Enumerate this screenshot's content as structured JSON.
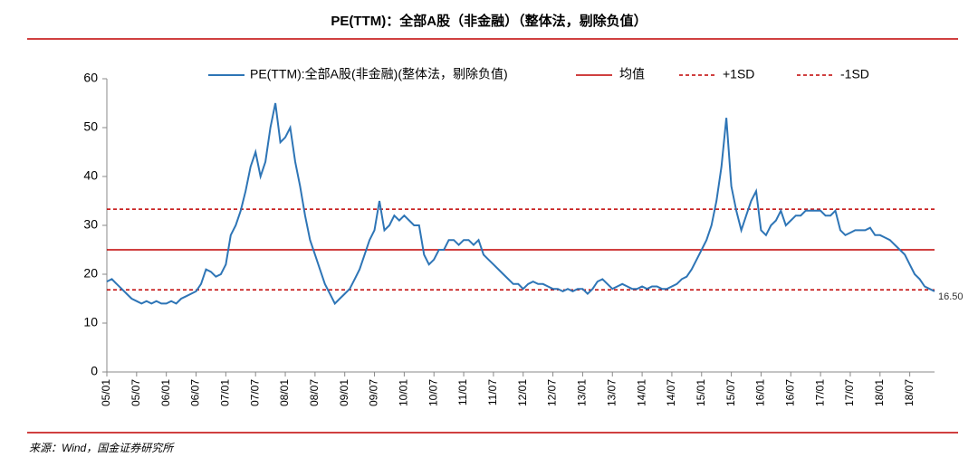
{
  "chart_data": {
    "type": "line",
    "title": "PE(TTM)：全部A股（非金融）（整体法，剔除负值）",
    "source": "来源：Wind，国金证券研究所",
    "categories": [
      "05/01",
      null,
      null,
      null,
      null,
      null,
      "05/07",
      null,
      null,
      null,
      null,
      null,
      "06/01",
      null,
      null,
      null,
      null,
      null,
      "06/07",
      null,
      null,
      null,
      null,
      null,
      "07/01",
      null,
      null,
      null,
      null,
      null,
      "07/07",
      null,
      null,
      null,
      null,
      null,
      "08/01",
      null,
      null,
      null,
      null,
      null,
      "08/07",
      null,
      null,
      null,
      null,
      null,
      "09/01",
      null,
      null,
      null,
      null,
      null,
      "09/07",
      null,
      null,
      null,
      null,
      null,
      "10/01",
      null,
      null,
      null,
      null,
      null,
      "10/07",
      null,
      null,
      null,
      null,
      null,
      "11/01",
      null,
      null,
      null,
      null,
      null,
      "11/07",
      null,
      null,
      null,
      null,
      null,
      "12/01",
      null,
      null,
      null,
      null,
      null,
      "12/07",
      null,
      null,
      null,
      null,
      null,
      "13/01",
      null,
      null,
      null,
      null,
      null,
      "13/07",
      null,
      null,
      null,
      null,
      null,
      "14/01",
      null,
      null,
      null,
      null,
      null,
      "14/07",
      null,
      null,
      null,
      null,
      null,
      "15/01",
      null,
      null,
      null,
      null,
      null,
      "15/07",
      null,
      null,
      null,
      null,
      null,
      "16/01",
      null,
      null,
      null,
      null,
      null,
      "16/07",
      null,
      null,
      null,
      null,
      null,
      "17/01",
      null,
      null,
      null,
      null,
      null,
      "17/07",
      null,
      null,
      null,
      null,
      null,
      "18/01",
      null,
      null,
      null,
      null,
      null,
      "18/07",
      null,
      null,
      null,
      null,
      null
    ],
    "series": [
      {
        "name": "PE(TTM):全部A股(非金融)(整体法，剔除负值)",
        "color": "#2e75b6",
        "values": [
          18.5,
          19,
          18,
          17,
          16,
          15,
          14.5,
          14,
          14.5,
          14,
          14.5,
          14,
          14,
          14.5,
          14,
          15,
          15.5,
          16,
          16.5,
          18,
          21,
          20.5,
          19.5,
          20,
          22,
          28,
          30,
          33,
          37,
          42,
          45,
          40,
          43,
          50,
          55,
          47,
          48,
          50,
          43,
          38,
          32,
          27,
          24,
          21,
          18,
          16,
          14,
          15,
          16,
          17,
          19,
          21,
          24,
          27,
          29,
          35,
          29,
          30,
          32,
          31,
          32,
          31,
          30,
          30,
          24,
          22,
          23,
          25,
          25,
          27,
          27,
          26,
          27,
          27,
          26,
          27,
          24,
          23,
          22,
          21,
          20,
          19,
          18,
          18,
          17,
          18,
          18.5,
          18,
          18,
          17.5,
          17,
          17,
          16.5,
          17,
          16.5,
          17,
          17,
          16,
          17,
          18.5,
          19,
          18,
          17,
          17.5,
          18,
          17.5,
          17,
          17,
          17.5,
          17,
          17.5,
          17.5,
          17,
          17,
          17.5,
          18,
          19,
          19.5,
          21,
          23,
          25,
          27,
          30,
          35,
          42,
          52,
          38,
          33,
          29,
          32,
          35,
          37,
          29,
          28,
          30,
          31,
          33,
          30,
          31,
          32,
          32,
          33,
          33,
          33,
          33,
          32,
          32,
          33,
          29,
          28,
          28.5,
          29,
          29,
          29,
          29.5,
          28,
          28,
          27.5,
          27,
          26,
          25,
          24,
          22,
          20,
          19,
          17.5,
          17,
          16.5
        ],
        "value_labels": [
          null,
          null,
          null,
          null,
          null,
          null,
          null,
          null,
          null,
          null,
          null,
          null,
          null,
          null,
          null,
          null,
          null,
          null,
          null,
          null,
          null,
          null,
          null,
          null,
          null,
          null,
          null,
          null,
          null,
          null,
          null,
          null,
          null,
          null,
          null,
          null,
          null,
          null,
          null,
          null,
          null,
          null,
          null,
          null,
          null,
          null,
          null,
          null,
          null,
          null,
          null,
          null,
          null,
          null,
          null,
          null,
          null,
          null,
          null,
          null,
          null,
          null,
          null,
          null,
          null,
          null,
          null,
          null,
          null,
          null,
          null,
          null,
          null,
          null,
          null,
          null,
          null,
          null,
          null,
          null,
          null,
          null,
          null,
          null,
          null,
          null,
          null,
          null,
          null,
          null,
          null,
          null,
          null,
          null,
          null,
          null,
          null,
          null,
          null,
          null,
          null,
          null,
          null,
          null,
          null,
          null,
          null,
          null,
          null,
          null,
          null,
          null,
          null,
          null,
          null,
          null,
          null,
          null,
          null,
          null,
          null,
          null,
          null,
          null,
          null,
          null,
          null,
          null,
          null,
          null,
          null,
          null,
          null,
          null,
          null,
          null,
          null,
          null,
          null,
          null,
          null,
          null,
          null,
          null,
          null,
          null,
          null,
          null,
          null,
          null,
          null,
          null,
          null,
          null,
          null,
          null,
          null,
          null,
          null,
          null,
          null,
          null,
          null,
          null,
          null,
          null,
          null,
          "16.50"
        ]
      }
    ],
    "reference_lines": [
      {
        "name": "均值",
        "value": 25,
        "color": "#c00000",
        "style": "solid"
      },
      {
        "name": "+1SD",
        "value": 33.3,
        "color": "#c00000",
        "style": "dashed"
      },
      {
        "name": "-1SD",
        "value": 16.8,
        "color": "#c00000",
        "style": "dashed"
      }
    ],
    "ylim": [
      0,
      60
    ],
    "yticks": [
      0,
      10,
      20,
      30,
      40,
      50,
      60
    ],
    "grid": false
  }
}
